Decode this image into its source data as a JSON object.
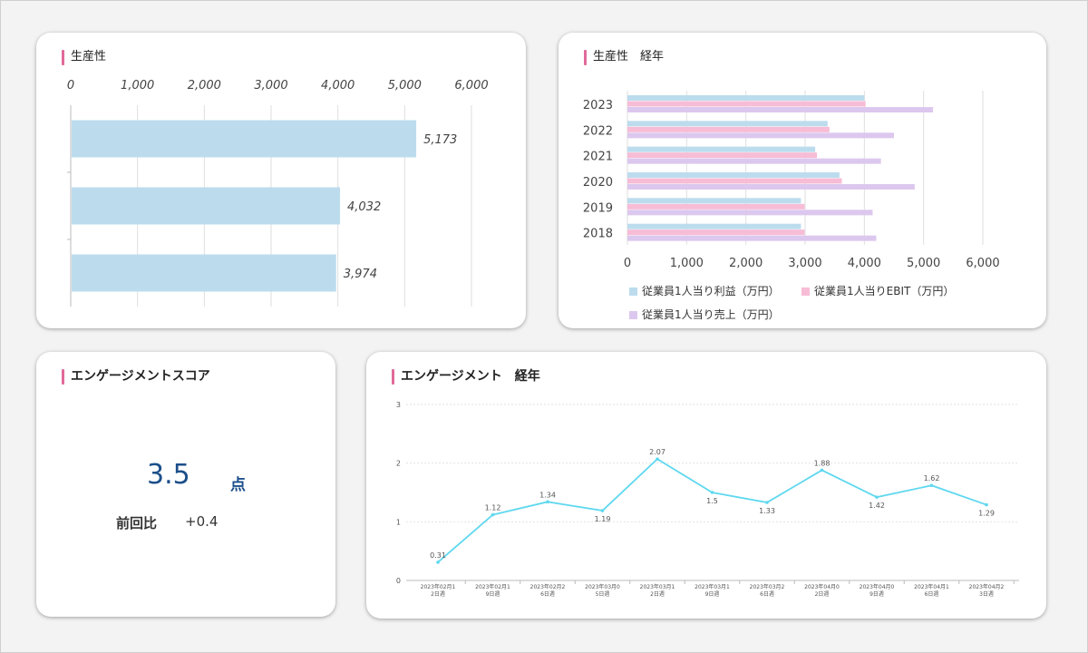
{
  "cards": {
    "productivity": {
      "title": "生産性"
    },
    "productivity_trend": {
      "title": "生産性　経年"
    },
    "engagement_score": {
      "title": "エンゲージメントスコア",
      "score": "3.5",
      "unit": "点",
      "prev_label": "前回比",
      "prev_value": "+0.4"
    },
    "engagement_trend": {
      "title": "エンゲージメント　経年"
    }
  },
  "chart_data": [
    {
      "type": "bar",
      "orientation": "horizontal",
      "values": [
        5173,
        4032,
        3974
      ],
      "value_labels": [
        "5,173",
        "4,032",
        "3,974"
      ],
      "xlim": [
        0,
        6000
      ],
      "ticks": [
        0,
        1000,
        2000,
        3000,
        4000,
        5000,
        6000
      ],
      "tick_labels": [
        "0",
        "1,000",
        "2,000",
        "3,000",
        "4,000",
        "5,000",
        "6,000"
      ],
      "axis_position": "top",
      "grid": true,
      "color": "#bcdcee"
    },
    {
      "type": "bar",
      "orientation": "horizontal",
      "categories": [
        "2023",
        "2022",
        "2021",
        "2020",
        "2019",
        "2018"
      ],
      "series": [
        {
          "name": "従業員1人当り利益（万円）",
          "color": "#bcdcee",
          "values": [
            4000,
            3380,
            3170,
            3580,
            2930,
            2930
          ]
        },
        {
          "name": "従業員1人当りEBIT（万円）",
          "color": "#f7bcd6",
          "values": [
            4020,
            3410,
            3200,
            3620,
            2990,
            2990
          ]
        },
        {
          "name": "従業員1人当り売上（万円）",
          "color": "#dcc8ee",
          "values": [
            5160,
            4500,
            4280,
            4850,
            4140,
            4200
          ]
        }
      ],
      "xlim": [
        0,
        6000
      ],
      "ticks": [
        0,
        1000,
        2000,
        3000,
        4000,
        5000,
        6000
      ],
      "tick_labels": [
        "0",
        "1,000",
        "2,000",
        "3,000",
        "4,000",
        "5,000",
        "6,000"
      ],
      "grid": true,
      "legend": "bottom"
    },
    {
      "type": "line",
      "values": [
        0.31,
        1.12,
        1.34,
        1.19,
        2.07,
        1.5,
        1.33,
        1.88,
        1.42,
        1.62,
        1.29
      ],
      "value_labels": [
        "0.31",
        "1.12",
        "1.34",
        "1.19",
        "2.07",
        "1.5",
        "1.33",
        "1.88",
        "1.42",
        "1.62",
        "1.29"
      ],
      "x_labels": [
        [
          "2023年02月1",
          "2日週"
        ],
        [
          "2023年02月1",
          "9日週"
        ],
        [
          "2023年02月2",
          "6日週"
        ],
        [
          "2023年03月0",
          "5日週"
        ],
        [
          "2023年03月1",
          "2日週"
        ],
        [
          "2023年03月1",
          "9日週"
        ],
        [
          "2023年03月2",
          "6日週"
        ],
        [
          "2023年04月0",
          "2日週"
        ],
        [
          "2023年04月0",
          "9日週"
        ],
        [
          "2023年04月1",
          "6日週"
        ],
        [
          "2023年04月2",
          "3日週"
        ]
      ],
      "ylim": [
        0,
        3
      ],
      "yticks": [
        0,
        1,
        2,
        3
      ],
      "grid": true,
      "color": "#5fd8ef"
    }
  ]
}
